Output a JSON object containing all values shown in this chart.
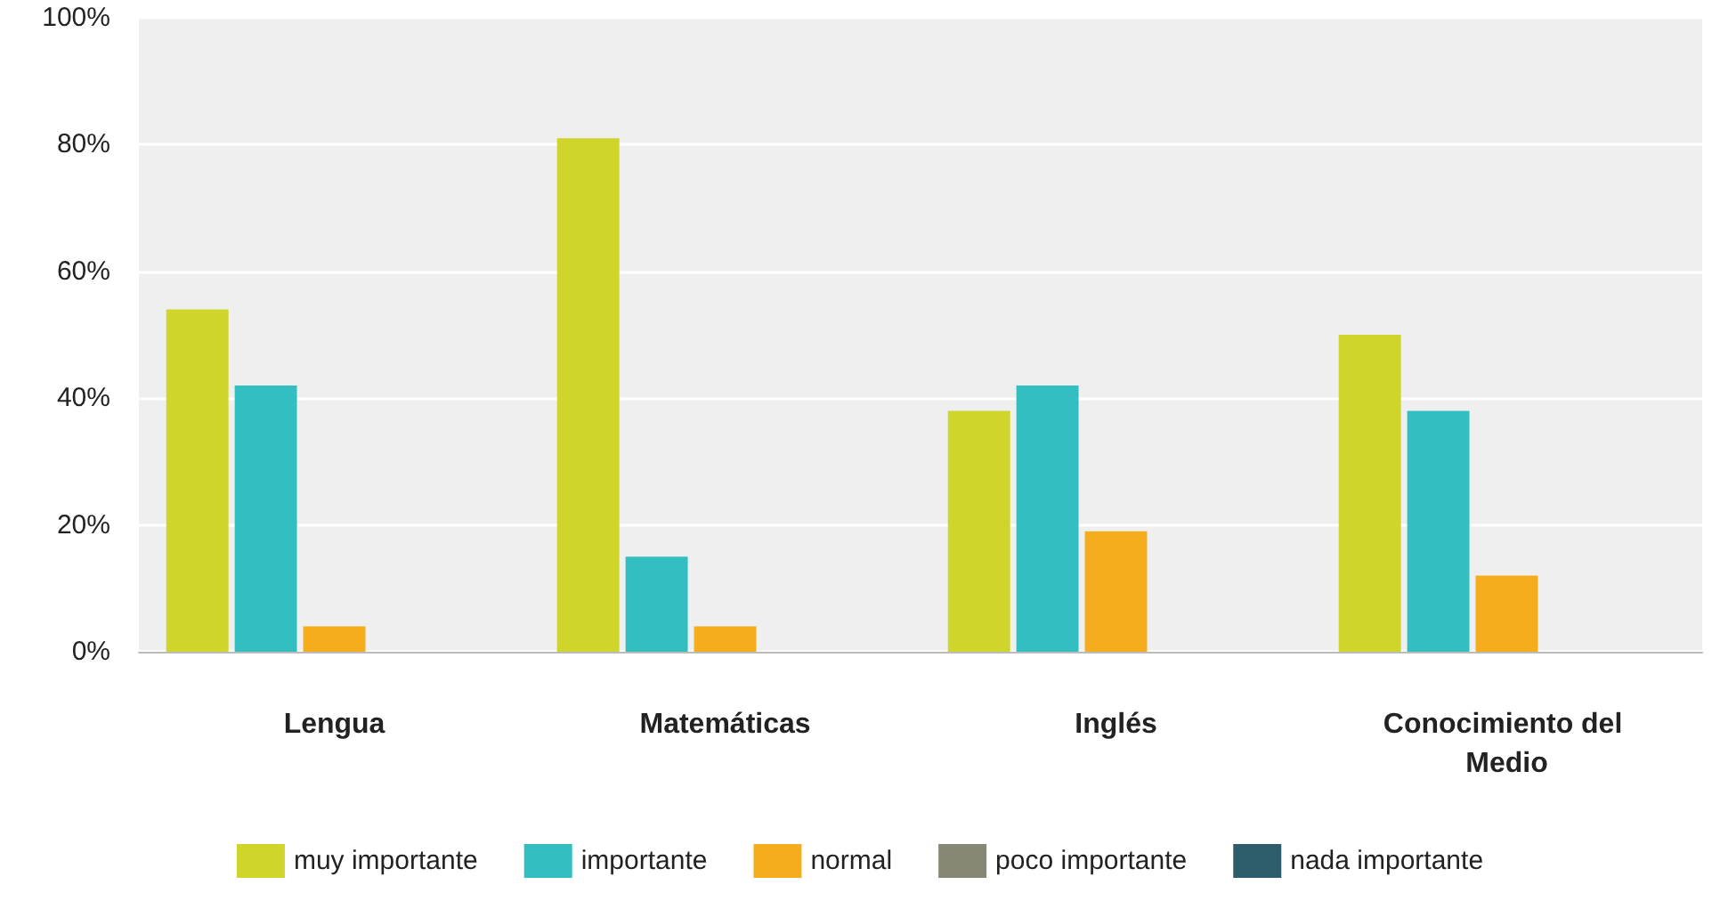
{
  "chart_data": {
    "type": "bar",
    "categories": [
      "Lengua",
      "Matemáticas",
      "Inglés",
      "Conocimiento del Medio"
    ],
    "series": [
      {
        "name": "muy importante",
        "color": "#cfd52a",
        "values": [
          54,
          81,
          38,
          50
        ]
      },
      {
        "name": "importante",
        "color": "#33bfc1",
        "values": [
          42,
          15,
          42,
          38
        ]
      },
      {
        "name": "normal",
        "color": "#f5ad1d",
        "values": [
          4,
          4,
          19,
          12
        ]
      },
      {
        "name": "poco importante",
        "color": "#878776",
        "values": [
          0,
          0,
          0,
          0
        ]
      },
      {
        "name": "nada importante",
        "color": "#2d5d6b",
        "values": [
          0,
          0,
          0,
          0
        ]
      }
    ],
    "ylim": [
      0,
      100
    ],
    "yticks": [
      {
        "value": 0,
        "label": "0%"
      },
      {
        "value": 20,
        "label": "20%"
      },
      {
        "value": 40,
        "label": "40%"
      },
      {
        "value": 60,
        "label": "60%"
      },
      {
        "value": 80,
        "label": "80%"
      },
      {
        "value": 100,
        "label": "100%"
      }
    ],
    "grid": "y",
    "legend": "bottom"
  }
}
